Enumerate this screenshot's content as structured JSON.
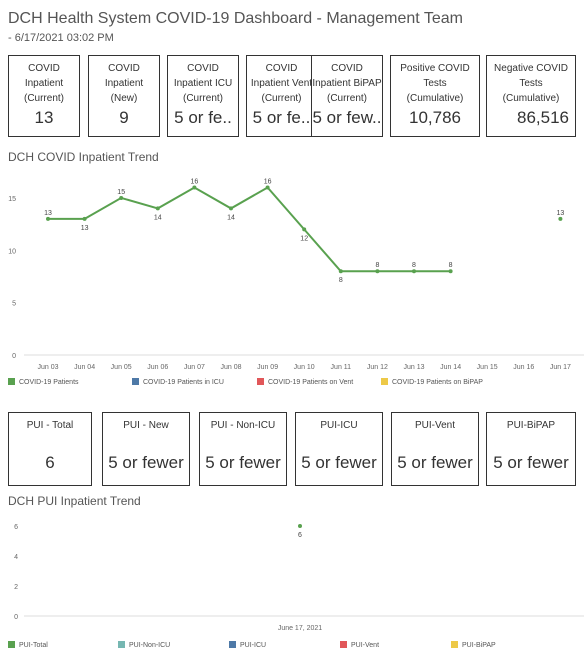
{
  "header": {
    "title": "DCH Health System COVID-19 Dashboard - Management Team",
    "subtitle": "- 6/17/2021 03:02 PM"
  },
  "kpis": [
    {
      "label": "COVID\nInpatient\n(Current)",
      "value": "13"
    },
    {
      "label": "COVID\nInpatient\n(New)",
      "value": "9"
    },
    {
      "label": "COVID\nInpatient ICU\n(Current)",
      "value": "5 or fe.."
    },
    {
      "label": "COVID\nInpatient Vent\n(Current)",
      "value": "5 or fe.."
    },
    {
      "label": "COVID\nInpatient BiPAP\n(Current)",
      "value": "5 or few.."
    },
    {
      "label": "Positive COVID\nTests\n(Cumulative)",
      "value": "10,786"
    },
    {
      "label": "Negative COVID\nTests\n(Cumulative)",
      "value": "86,516"
    }
  ],
  "inpatient_section": {
    "title": "DCH COVID Inpatient Trend"
  },
  "inpatient_legend": [
    {
      "label": "COVID-19 Patients",
      "color": "#59A14F"
    },
    {
      "label": "COVID-19 Patients in ICU",
      "color": "#4E79A7"
    },
    {
      "label": "COVID-19 Patients on Vent",
      "color": "#E15759"
    },
    {
      "label": "COVID-19 Patients on BiPAP",
      "color": "#EDC948"
    }
  ],
  "pui_tiles": [
    {
      "label": "PUI - Total",
      "value": "6"
    },
    {
      "label": "PUI - New",
      "value": "5 or fewer"
    },
    {
      "label": "PUI - Non-ICU",
      "value": "5 or fewer"
    },
    {
      "label": "PUI-ICU",
      "value": "5 or fewer"
    },
    {
      "label": "PUI-Vent",
      "value": "5 or fewer"
    },
    {
      "label": "PUI-BiPAP",
      "value": "5 or fewer"
    }
  ],
  "pui_section": {
    "title": "DCH PUI Inpatient Trend"
  },
  "pui_legend": [
    {
      "label": "PUI-Total",
      "color": "#59A14F"
    },
    {
      "label": "PUI-Non-ICU",
      "color": "#76B7B2"
    },
    {
      "label": "PUI-ICU",
      "color": "#4E79A7"
    },
    {
      "label": "PUI-Vent",
      "color": "#E15759"
    },
    {
      "label": "PUI-BiPAP",
      "color": "#EDC948"
    }
  ],
  "chart_data": [
    {
      "type": "line",
      "title": "DCH COVID Inpatient Trend",
      "categories": [
        "Jun 03",
        "Jun 04",
        "Jun 05",
        "Jun 06",
        "Jun 07",
        "Jun 08",
        "Jun 09",
        "Jun 10",
        "Jun 11",
        "Jun 12",
        "Jun 13",
        "Jun 14",
        "Jun 15",
        "Jun 16",
        "Jun 17"
      ],
      "series": [
        {
          "name": "COVID-19 Patients",
          "color": "#59A14F",
          "values": [
            13,
            13,
            15,
            14,
            16,
            14,
            16,
            12,
            8,
            8,
            8,
            8,
            null,
            null,
            13
          ]
        }
      ],
      "yticks": [
        0,
        5,
        10,
        15
      ],
      "ylim": [
        0,
        17
      ]
    },
    {
      "type": "scatter",
      "title": "DCH PUI Inpatient Trend",
      "categories": [
        "June 17, 2021"
      ],
      "series": [
        {
          "name": "PUI-Total",
          "color": "#59A14F",
          "values": [
            6
          ]
        }
      ],
      "yticks": [
        0,
        2,
        4,
        6
      ],
      "ylim": [
        0,
        6.4
      ]
    }
  ]
}
